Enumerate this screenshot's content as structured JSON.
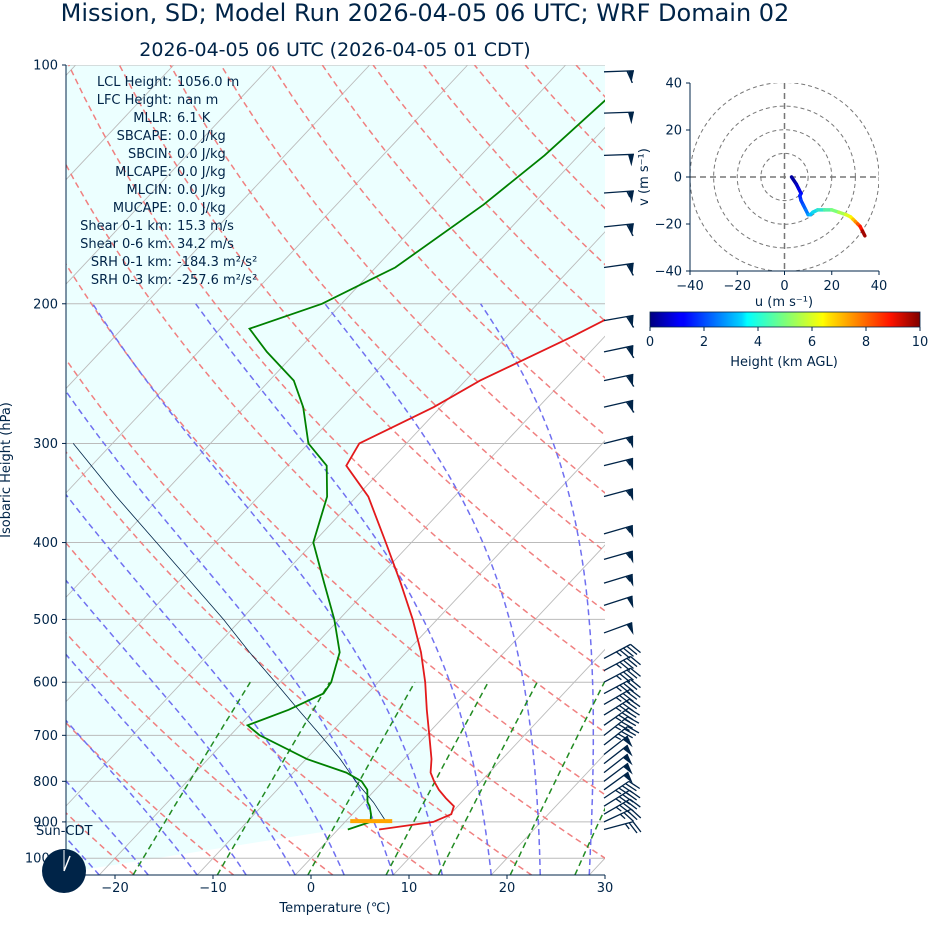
{
  "title": "Mission, SD; Model Run 2026-04-05 06 UTC; WRF Domain 02",
  "subtitle": "2026-04-05 06 UTC  (2026-04-05 01 CDT)",
  "clock_label": "Sun-CDT",
  "colors": {
    "text": "#002448",
    "temperature": "#e31a1c",
    "dewpoint": "#008000",
    "parcel": "#002448",
    "cape_fill": "#e0ffff",
    "dry_adiabat": "#f08080",
    "moist_adiabat": "#7070f0",
    "mixing_ratio": "#228b22",
    "isotherm": "#bbbbbb",
    "isobar": "#bbbbbb",
    "lcl_marker": "#ffa500"
  },
  "annotations": [
    {
      "label": "LCL Height:",
      "value": "1056.0 m"
    },
    {
      "label": "LFC Height:",
      "value": "nan m"
    },
    {
      "label": "MLLR:",
      "value": "6.1 K"
    },
    {
      "label": "SBCAPE:",
      "value": "0.0 J/kg"
    },
    {
      "label": "SBCIN:",
      "value": "0.0 J/kg"
    },
    {
      "label": "MLCAPE:",
      "value": "0.0 J/kg"
    },
    {
      "label": "MLCIN:",
      "value": "0.0 J/kg"
    },
    {
      "label": "MUCAPE:",
      "value": "0.0 J/kg"
    },
    {
      "label": "Shear 0-1 km:",
      "value": "15.3 m/s"
    },
    {
      "label": "Shear 0-6 km:",
      "value": "34.2 m/s"
    },
    {
      "label": "SRH 0-1 km:",
      "value": "-184.3 m²/s²"
    },
    {
      "label": "SRH 0-3 km:",
      "value": "-257.6 m²/s²"
    }
  ],
  "chart_data": [
    {
      "type": "line",
      "kind": "skew-t log-p diagram",
      "xlabel": "Temperature (℃)",
      "ylabel": "Isobaric Height (hPa)",
      "xlim": [
        -25,
        30
      ],
      "ylim": [
        1050,
        100
      ],
      "y_scale": "log",
      "x_ticks": [
        "−20",
        "−10",
        "0",
        "10",
        "20",
        "30"
      ],
      "x_tick_values": [
        -20,
        -10,
        0,
        10,
        20,
        30
      ],
      "y_ticks": [
        "100",
        "200",
        "300",
        "400",
        "500",
        "600",
        "700",
        "800",
        "900",
        "1000"
      ],
      "y_tick_values": [
        100,
        200,
        300,
        400,
        500,
        600,
        700,
        800,
        900,
        1000
      ],
      "series": [
        {
          "name": "Temperature",
          "p": [
            920,
            900,
            880,
            860,
            840,
            820,
            800,
            780,
            750,
            700,
            650,
            600,
            550,
            500,
            450,
            400,
            350,
            320,
            300,
            270,
            250,
            220,
            200,
            170,
            150,
            130,
            115,
            100
          ],
          "t": [
            4.2,
            9.0,
            10.1,
            9.6,
            8.0,
            6.5,
            5.2,
            4.0,
            2.8,
            0.3,
            -2.4,
            -5.2,
            -8.5,
            -12.5,
            -17.2,
            -22.6,
            -28.8,
            -34.0,
            -34.8,
            -30.7,
            -28.5,
            -23.3,
            -19.9,
            -14.0,
            -11.7,
            -11.7,
            -12.1,
            -12.7
          ]
        },
        {
          "name": "Dewpoint",
          "p": [
            920,
            900,
            880,
            860,
            850,
            820,
            800,
            780,
            750,
            700,
            680,
            650,
            620,
            600,
            550,
            500,
            450,
            400,
            350,
            320,
            300,
            270,
            250,
            230,
            215,
            200,
            180,
            150,
            130,
            100
          ],
          "t": [
            1.0,
            2.6,
            1.9,
            1.0,
            0.4,
            -0.8,
            -2.2,
            -4.6,
            -9.9,
            -17.0,
            -19.2,
            -16.5,
            -14.5,
            -14.8,
            -16.8,
            -20.5,
            -25.0,
            -30.0,
            -33.0,
            -36.0,
            -40.0,
            -44.0,
            -47.5,
            -53.0,
            -57.0,
            -52.0,
            -48.0,
            -45.0,
            -43.5,
            -42.0
          ]
        },
        {
          "name": "Parcel",
          "p": [
            900,
            850,
            800,
            750,
            700,
            650,
            600,
            550,
            500,
            450,
            400,
            350,
            300
          ],
          "t": [
            4.2,
            1.0,
            -2.8,
            -6.5,
            -10.8,
            -15.5,
            -20.5,
            -26.0,
            -31.8,
            -38.5,
            -46.0,
            -54.5,
            -64.0
          ]
        }
      ],
      "lcl_pressure": 898,
      "wind_barbs_m_s": [
        {
          "p": 920,
          "speed": 14,
          "dir": 255
        },
        {
          "p": 900,
          "speed": 17,
          "dir": 245
        },
        {
          "p": 880,
          "speed": 22,
          "dir": 240
        },
        {
          "p": 860,
          "speed": 23,
          "dir": 238
        },
        {
          "p": 840,
          "speed": 24,
          "dir": 236
        },
        {
          "p": 820,
          "speed": 25,
          "dir": 234
        },
        {
          "p": 800,
          "speed": 25,
          "dir": 233
        },
        {
          "p": 780,
          "speed": 25,
          "dir": 232
        },
        {
          "p": 760,
          "speed": 25,
          "dir": 232
        },
        {
          "p": 740,
          "speed": 25,
          "dir": 232
        },
        {
          "p": 720,
          "speed": 24,
          "dir": 232
        },
        {
          "p": 700,
          "speed": 24,
          "dir": 232
        },
        {
          "p": 680,
          "speed": 24,
          "dir": 235
        },
        {
          "p": 660,
          "speed": 24,
          "dir": 238
        },
        {
          "p": 640,
          "speed": 24,
          "dir": 240
        },
        {
          "p": 620,
          "speed": 24,
          "dir": 242
        },
        {
          "p": 600,
          "speed": 24,
          "dir": 242
        },
        {
          "p": 580,
          "speed": 24,
          "dir": 242
        },
        {
          "p": 560,
          "speed": 24,
          "dir": 242
        },
        {
          "p": 520,
          "speed": 26,
          "dir": 250
        },
        {
          "p": 480,
          "speed": 27,
          "dir": 252
        },
        {
          "p": 450,
          "speed": 28,
          "dir": 253
        },
        {
          "p": 420,
          "speed": 28,
          "dir": 254
        },
        {
          "p": 390,
          "speed": 28,
          "dir": 254
        },
        {
          "p": 350,
          "speed": 28,
          "dir": 255
        },
        {
          "p": 320,
          "speed": 28,
          "dir": 256
        },
        {
          "p": 300,
          "speed": 28,
          "dir": 256
        },
        {
          "p": 270,
          "speed": 30,
          "dir": 257
        },
        {
          "p": 250,
          "speed": 30,
          "dir": 258
        },
        {
          "p": 230,
          "speed": 30,
          "dir": 258
        },
        {
          "p": 210,
          "speed": 31,
          "dir": 260
        },
        {
          "p": 180,
          "speed": 32,
          "dir": 262
        },
        {
          "p": 160,
          "speed": 30,
          "dir": 264
        },
        {
          "p": 145,
          "speed": 28,
          "dir": 266
        },
        {
          "p": 130,
          "speed": 27,
          "dir": 268
        },
        {
          "p": 115,
          "speed": 27,
          "dir": 268
        },
        {
          "p": 102,
          "speed": 30,
          "dir": 268
        }
      ]
    },
    {
      "type": "line",
      "kind": "hodograph",
      "xlabel": "u (m s⁻¹)",
      "ylabel": "v (m s⁻¹)",
      "xlim": [
        -40,
        40
      ],
      "ylim": [
        -40,
        40
      ],
      "x_ticks": [
        "−40",
        "−20",
        "0",
        "20",
        "40"
      ],
      "x_tick_values": [
        -40,
        -20,
        0,
        20,
        40
      ],
      "y_ticks": [
        "−40",
        "−20",
        "0",
        "20",
        "40"
      ],
      "y_tick_values": [
        -40,
        -20,
        0,
        20,
        40
      ],
      "rings": [
        10,
        20,
        30,
        40
      ],
      "u": [
        3,
        5,
        6,
        7,
        6.5,
        7,
        8,
        9,
        10,
        11,
        12,
        14,
        17,
        20,
        23,
        26,
        28,
        29,
        30,
        31,
        32,
        33,
        34
      ],
      "v": [
        0,
        -3,
        -5,
        -7,
        -8,
        -10,
        -12,
        -14,
        -16,
        -16,
        -15,
        -14,
        -14,
        -14,
        -15,
        -16,
        -17,
        -18,
        -19,
        -20,
        -21,
        -23,
        -25
      ],
      "height_km": [
        0.0,
        0.3,
        0.6,
        0.9,
        1.2,
        1.5,
        1.8,
        2.1,
        2.4,
        2.8,
        3.2,
        3.6,
        4.0,
        4.5,
        5.0,
        5.5,
        6.0,
        6.5,
        7.0,
        7.6,
        8.2,
        8.9,
        9.7
      ]
    }
  ],
  "colorbar": {
    "label": "Height (km AGL)",
    "min": 0,
    "max": 10,
    "ticks": [
      "0",
      "2",
      "4",
      "6",
      "8",
      "10"
    ],
    "tick_values": [
      0,
      2,
      4,
      6,
      8,
      10
    ]
  }
}
